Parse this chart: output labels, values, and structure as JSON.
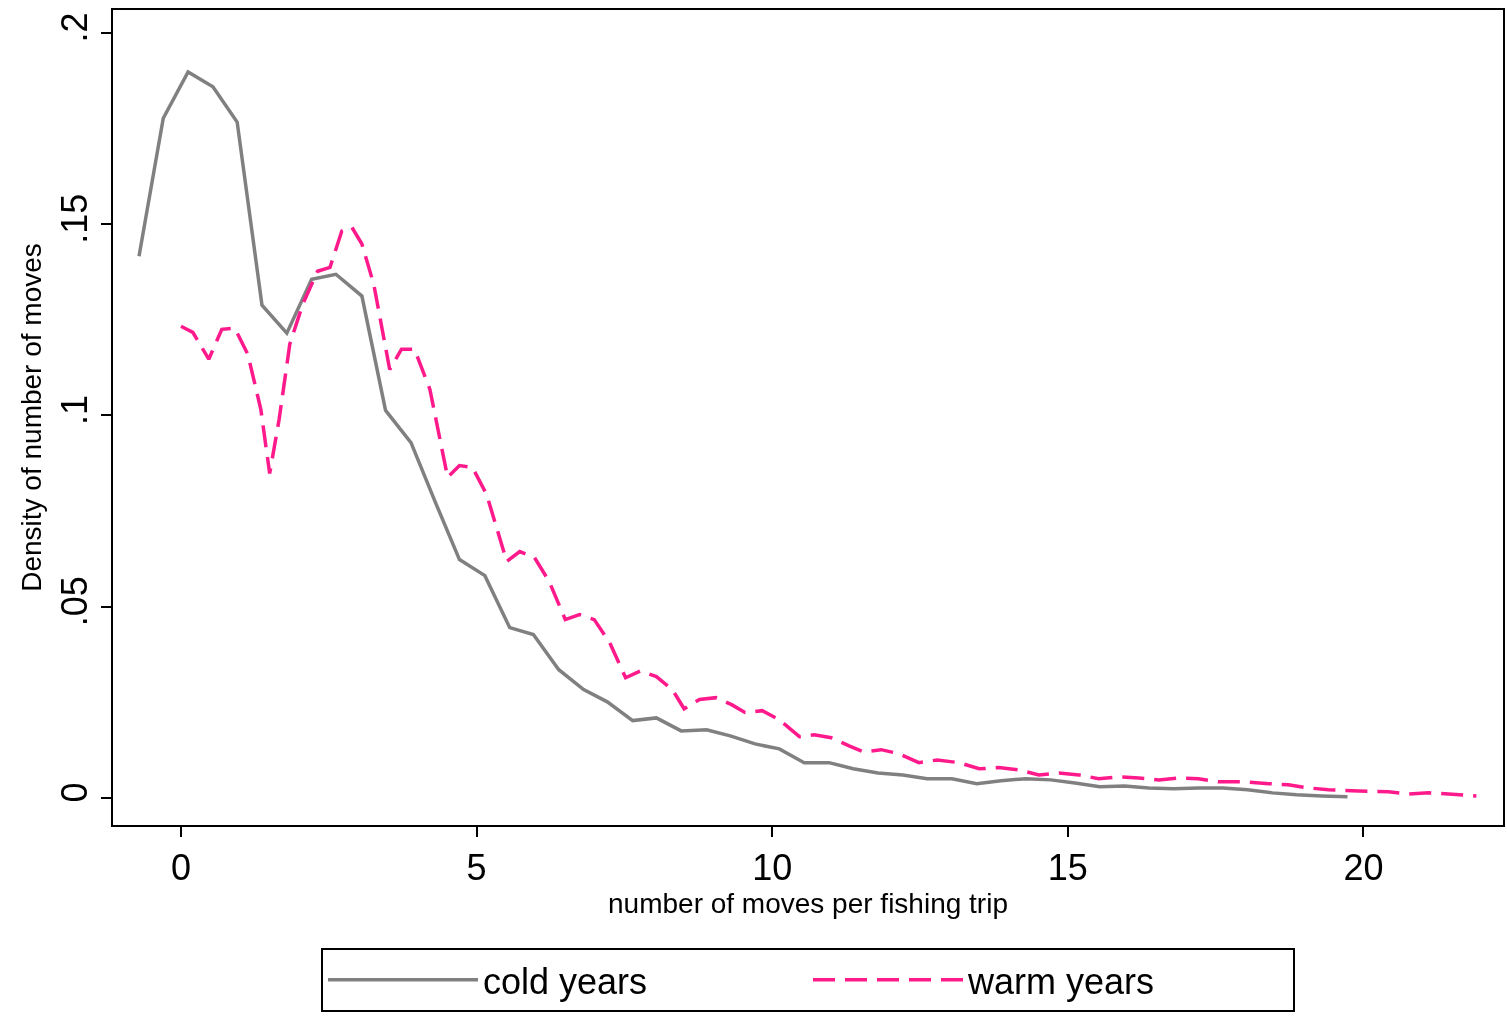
{
  "chart_data": {
    "type": "line",
    "xlabel": "number of moves per fishing trip",
    "ylabel": "Density of number of moves",
    "xlim": [
      -1.15,
      22.36
    ],
    "ylim": [
      -0.0071,
      0.206
    ],
    "xticks": [
      0,
      5,
      10,
      15,
      20
    ],
    "yticks": [
      {
        "value": 0,
        "label": "0"
      },
      {
        "value": 0.05,
        "label": ".05"
      },
      {
        "value": 0.1,
        "label": ".1"
      },
      {
        "value": 0.15,
        "label": ".15"
      },
      {
        "value": 0.2,
        "label": ".2"
      }
    ],
    "legend": "bottom",
    "marker": "none",
    "series": [
      {
        "name": "cold years",
        "color": "#808080",
        "line_style": "solid",
        "x": [
          -0.71,
          -0.3,
          0.12,
          0.54,
          0.95,
          1.37,
          1.79,
          2.21,
          2.62,
          3.06,
          3.46,
          3.89,
          4.31,
          4.71,
          5.14,
          5.56,
          5.96,
          6.39,
          6.81,
          7.21,
          7.64,
          8.04,
          8.46,
          8.89,
          9.29,
          9.71,
          10.12,
          10.54,
          10.96,
          11.37,
          11.79,
          12.21,
          12.62,
          13.04,
          13.46,
          13.87,
          14.29,
          14.71,
          15.12,
          15.54,
          15.96,
          16.37,
          16.79,
          17.21,
          17.62,
          18.04,
          18.46,
          18.87,
          19.29,
          19.73
        ],
        "values": [
          0.1416,
          0.1777,
          0.1898,
          0.1859,
          0.1767,
          0.1288,
          0.1215,
          0.1356,
          0.1369,
          0.1312,
          0.1013,
          0.0929,
          0.077,
          0.0623,
          0.0581,
          0.0445,
          0.0427,
          0.0335,
          0.0283,
          0.0251,
          0.0202,
          0.0209,
          0.0175,
          0.0178,
          0.0162,
          0.0141,
          0.0128,
          0.0092,
          0.0092,
          0.0076,
          0.0065,
          0.006,
          0.005,
          0.005,
          0.0037,
          0.0045,
          0.005,
          0.0047,
          0.0039,
          0.0029,
          0.0031,
          0.0026,
          0.0024,
          0.0026,
          0.0026,
          0.0021,
          0.0013,
          0.0008,
          0.0005,
          0.0003
        ]
      },
      {
        "name": "warm years",
        "color": "#ff1a8c",
        "line_style": "dashed",
        "x": [
          0,
          0.2,
          0.47,
          0.69,
          0.91,
          1.13,
          1.35,
          1.5,
          1.66,
          1.84,
          2.06,
          2.31,
          2.52,
          2.72,
          2.89,
          3.06,
          3.26,
          3.53,
          3.73,
          3.95,
          4.21,
          4.51,
          4.71,
          4.93,
          5.17,
          5.51,
          5.73,
          5.98,
          6.23,
          6.5,
          6.74,
          6.99,
          7.25,
          7.52,
          7.77,
          8.04,
          8.31,
          8.51,
          8.77,
          9.05,
          9.32,
          9.54,
          9.83,
          10.12,
          10.46,
          10.71,
          11.0,
          11.3,
          11.55,
          11.84,
          12.15,
          12.48,
          12.79,
          13.16,
          13.5,
          13.83,
          14.17,
          14.51,
          14.85,
          15.19,
          15.52,
          15.86,
          16.2,
          16.54,
          16.88,
          17.21,
          17.55,
          17.97,
          18.4,
          18.73,
          19.07,
          19.41,
          19.92,
          20.42,
          20.76,
          21.1,
          21.44,
          21.91
        ],
        "values": [
          0.1233,
          0.1217,
          0.1147,
          0.1225,
          0.1228,
          0.116,
          0.1016,
          0.0848,
          0.099,
          0.1186,
          0.1291,
          0.1377,
          0.1387,
          0.1482,
          0.1492,
          0.1448,
          0.1343,
          0.112,
          0.1173,
          0.1173,
          0.1068,
          0.0838,
          0.0869,
          0.0864,
          0.0793,
          0.0618,
          0.0644,
          0.0628,
          0.0565,
          0.0466,
          0.0479,
          0.0466,
          0.0406,
          0.0314,
          0.0332,
          0.0317,
          0.0283,
          0.0233,
          0.0257,
          0.0262,
          0.0243,
          0.0223,
          0.0228,
          0.0204,
          0.016,
          0.0165,
          0.0157,
          0.0136,
          0.012,
          0.0126,
          0.0115,
          0.0092,
          0.0099,
          0.0092,
          0.0076,
          0.0079,
          0.0073,
          0.006,
          0.0065,
          0.006,
          0.005,
          0.0055,
          0.0052,
          0.0047,
          0.0052,
          0.005,
          0.0042,
          0.0042,
          0.0037,
          0.0034,
          0.0026,
          0.0021,
          0.0018,
          0.0016,
          0.001,
          0.0013,
          0.001,
          0.0005
        ]
      }
    ]
  }
}
